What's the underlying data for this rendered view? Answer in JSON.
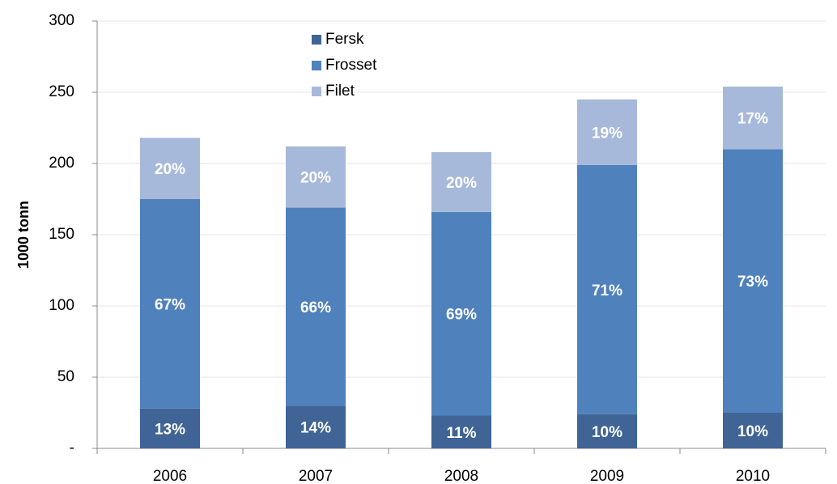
{
  "chart_data": {
    "type": "stacked_bar",
    "y_label": "1000 tonn",
    "categories": [
      "2006",
      "2007",
      "2008",
      "2009",
      "2010"
    ],
    "series": [
      {
        "name": "Fersk",
        "color": "#3f6495",
        "values": [
          28,
          30,
          23,
          24,
          25
        ],
        "value_labels": [
          "13%",
          "14%",
          "11%",
          "10%",
          "10%"
        ]
      },
      {
        "name": "Frosset",
        "color": "#4f81bd",
        "values": [
          147,
          139,
          143,
          175,
          185
        ],
        "value_labels": [
          "67%",
          "66%",
          "69%",
          "71%",
          "73%"
        ]
      },
      {
        "name": "Filet",
        "color": "#a7b9da",
        "values": [
          43,
          43,
          42,
          46,
          44
        ],
        "value_labels": [
          "20%",
          "20%",
          "20%",
          "19%",
          "17%"
        ]
      }
    ],
    "ylim": [
      0,
      300
    ],
    "yticks": [
      {
        "value": 0,
        "label": "-"
      },
      50,
      100,
      150,
      200,
      250,
      300
    ],
    "grid": true
  }
}
